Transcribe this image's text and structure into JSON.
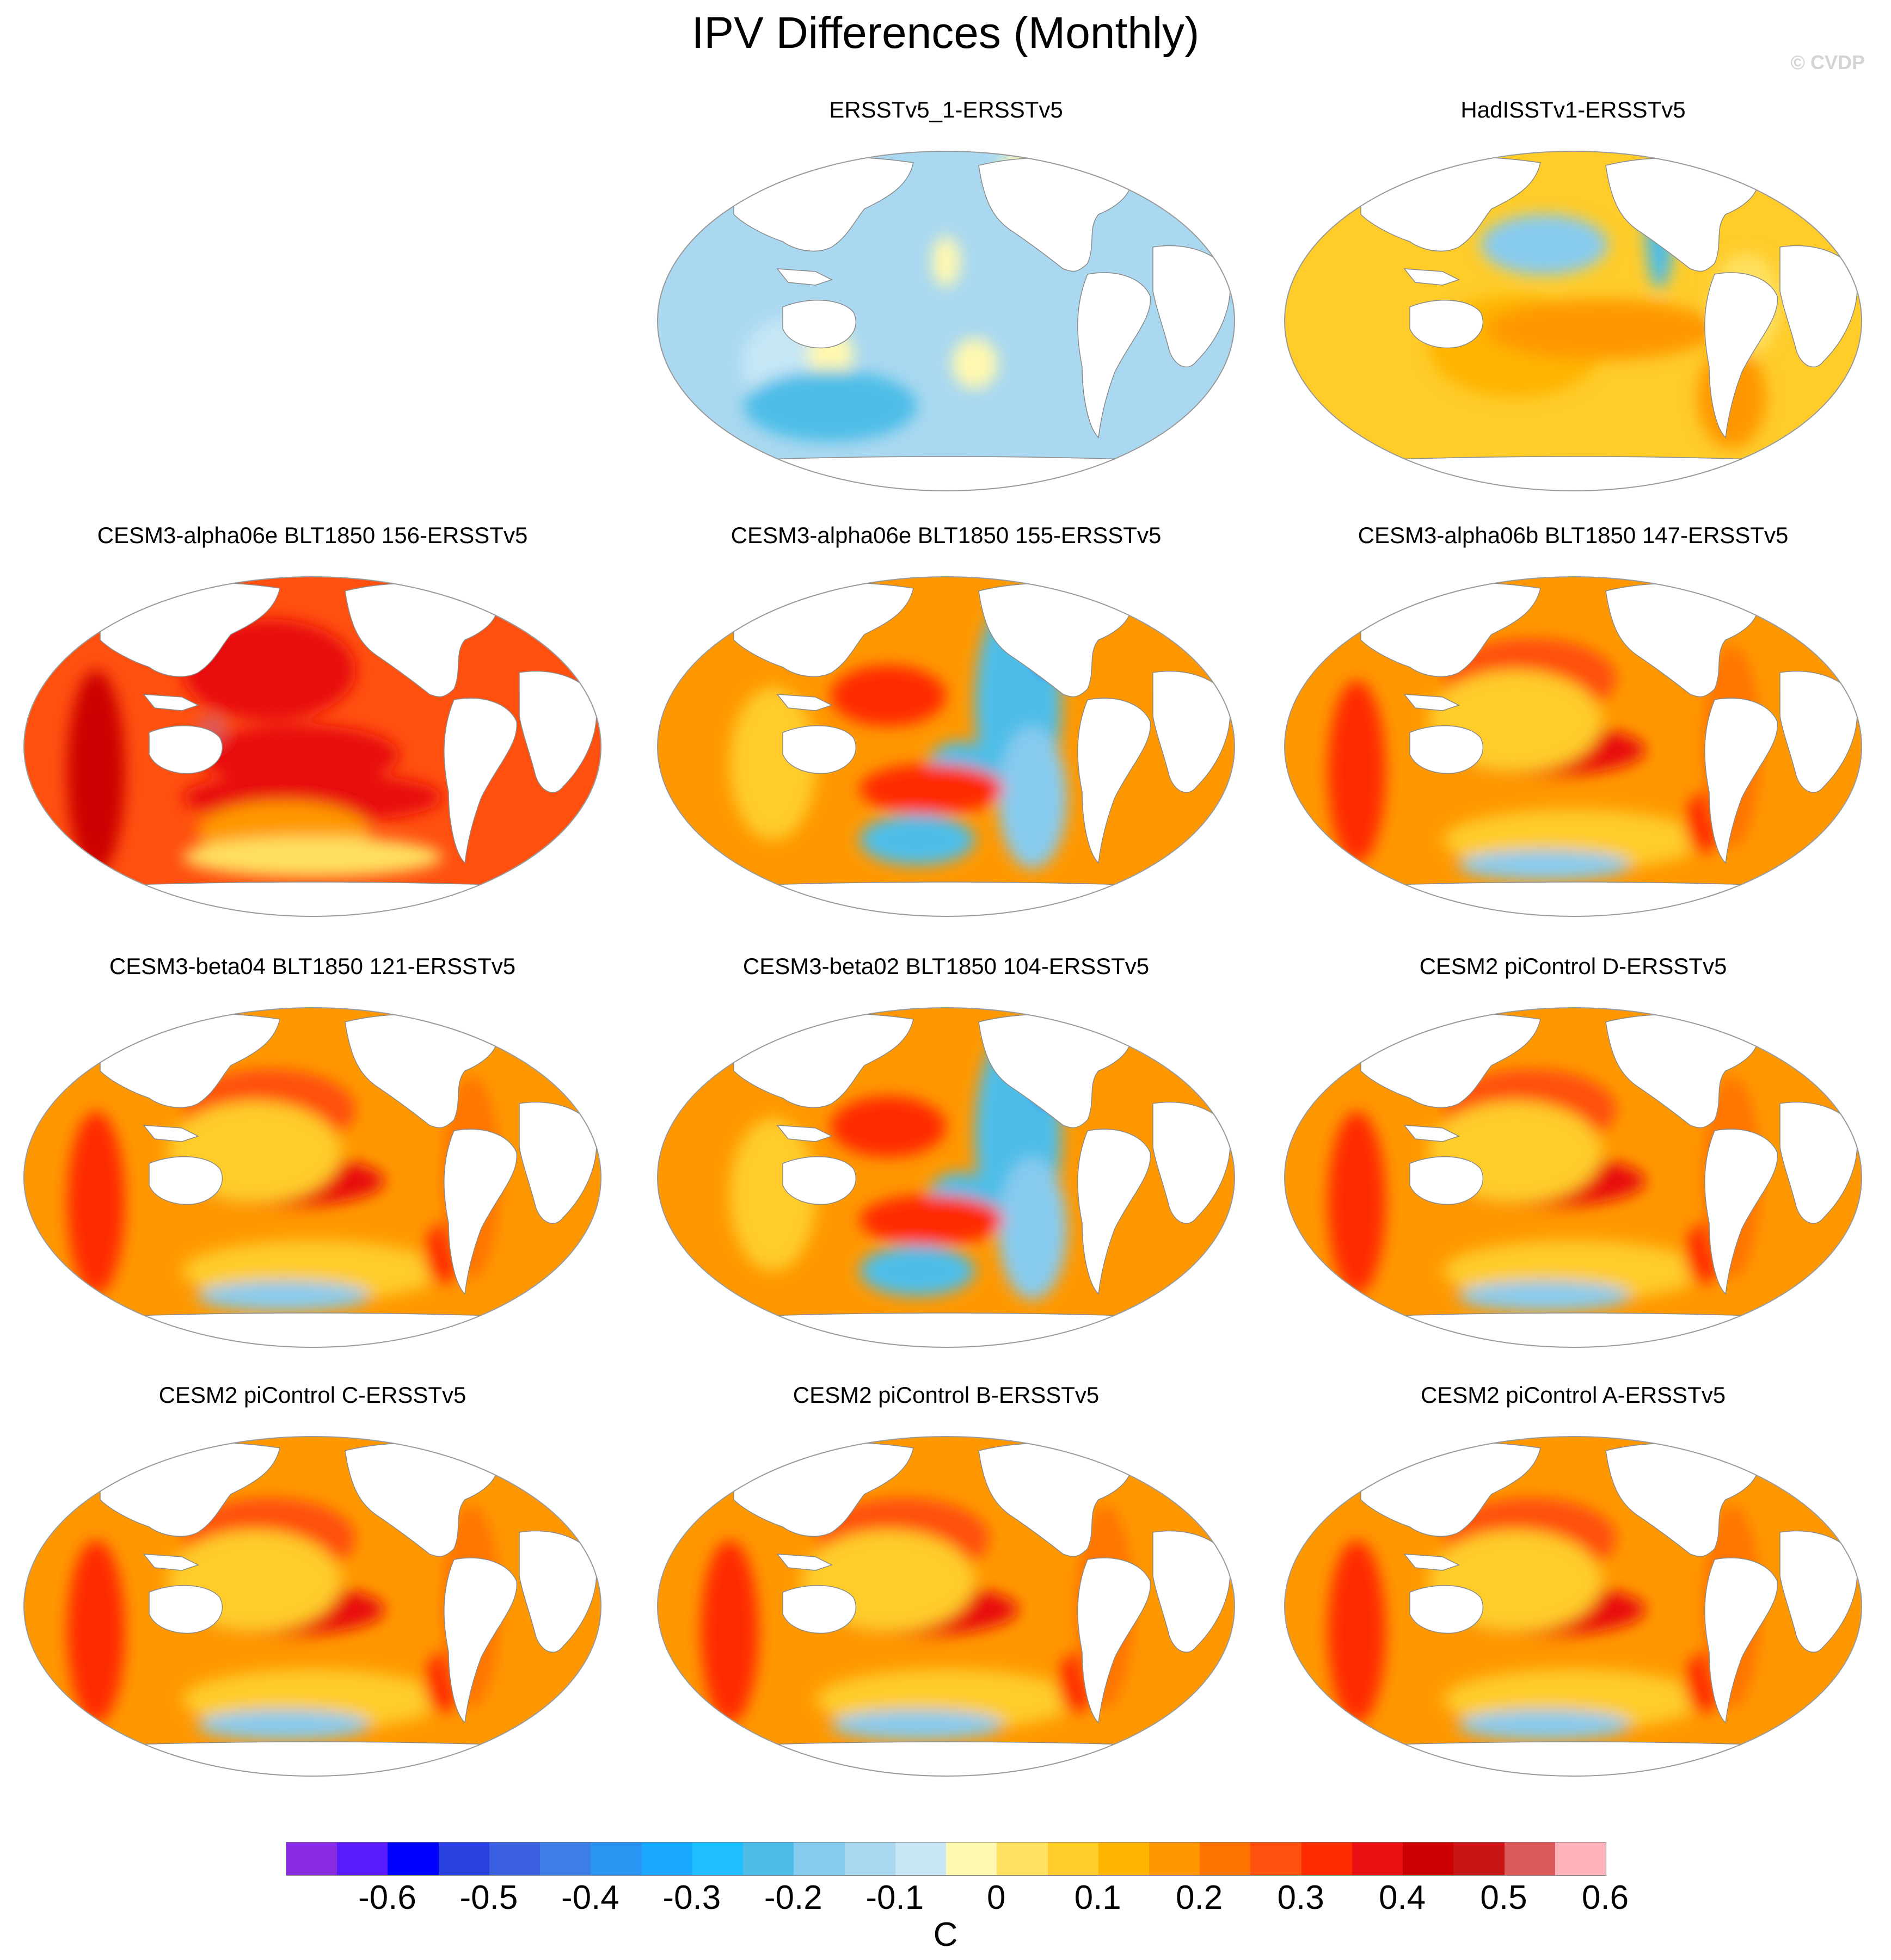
{
  "title": "IPV Differences (Monthly)",
  "watermark": "© CVDP",
  "colorbar": {
    "unit": "C",
    "labels": [
      "-0.6",
      "-0.5",
      "-0.4",
      "-0.3",
      "-0.2",
      "-0.1",
      "0",
      "0.1",
      "0.2",
      "0.3",
      "0.4",
      "0.5",
      "0.6"
    ],
    "colors": [
      "#8a2be2",
      "#5a1bff",
      "#0000ff",
      "#2a40e0",
      "#3a5fe0",
      "#3d7de8",
      "#2a94f2",
      "#1aa8ff",
      "#1ec0ff",
      "#4dbde8",
      "#87cbef",
      "#a9d8f0",
      "#c6e6f5",
      "#fff8b0",
      "#ffe060",
      "#ffcc2a",
      "#ffb400",
      "#ff9800",
      "#ff7400",
      "#ff5010",
      "#ff2a00",
      "#e81010",
      "#cc0000",
      "#c81414",
      "#dc5a5a",
      "#ffb4bc"
    ]
  },
  "panels": [
    {
      "title": "ERSSTv5_1-ERSSTv5",
      "pattern": "observed-neg"
    },
    {
      "title": "HadISSTv1-ERSSTv5",
      "pattern": "observed-pos"
    },
    {
      "title": "CESM3-alpha06e BLT1850 156-ERSSTv5",
      "pattern": "strong-warm"
    },
    {
      "title": "CESM3-alpha06e BLT1850 155-ERSSTv5",
      "pattern": "mixed-wave"
    },
    {
      "title": "CESM3-alpha06b BLT1850 147-ERSSTv5",
      "pattern": "warm"
    },
    {
      "title": "CESM3-beta04 BLT1850 121-ERSSTv5",
      "pattern": "warm"
    },
    {
      "title": "CESM3-beta02 BLT1850 104-ERSSTv5",
      "pattern": "mixed-wave"
    },
    {
      "title": "CESM2 piControl D-ERSSTv5",
      "pattern": "warm"
    },
    {
      "title": "CESM2 piControl C-ERSSTv5",
      "pattern": "warm"
    },
    {
      "title": "CESM2 piControl B-ERSSTv5",
      "pattern": "warm"
    },
    {
      "title": "CESM2 piControl A-ERSSTv5",
      "pattern": "warm"
    }
  ]
}
